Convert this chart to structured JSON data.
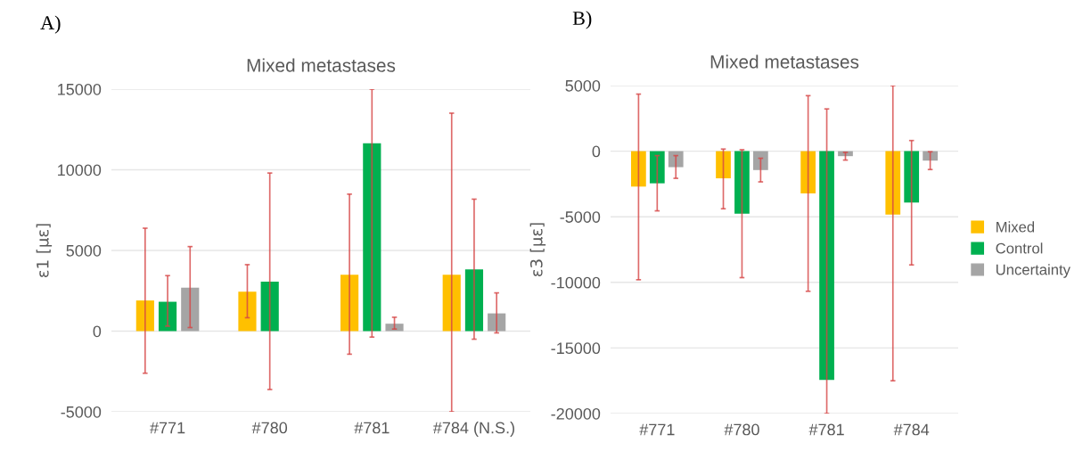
{
  "chart_data": [
    {
      "type": "bar",
      "title": "Mixed metastases",
      "ylabel": "ε1 [με]",
      "annotations": [
        "A)"
      ],
      "categories": [
        "#771",
        "#780",
        "#781",
        "#784 (N.S.)"
      ],
      "ylim": [
        -5000,
        15000
      ],
      "yticks": [
        -5000,
        0,
        5000,
        10000,
        15000
      ],
      "grid": "y",
      "legend": false,
      "series": [
        {
          "color": "#ffc000",
          "values": [
            1900,
            2450,
            3490,
            3490
          ],
          "errors": [
            [
              -2610,
              6380
            ],
            [
              830,
              4120
            ],
            [
              -1430,
              8490
            ],
            [
              -5000,
              13510
            ]
          ]
        },
        {
          "color": "#00b050",
          "values": [
            1820,
            3070,
            11640,
            3820
          ],
          "errors": [
            [
              310,
              3440
            ],
            [
              -3620,
              9800
            ],
            [
              -370,
              15000
            ],
            [
              -500,
              8180
            ]
          ]
        },
        {
          "color": "#a5a5a5",
          "values": [
            2700,
            null,
            460,
            1100
          ],
          "errors": [
            [
              220,
              5240
            ],
            null,
            [
              130,
              860
            ],
            [
              -110,
              2370
            ]
          ]
        }
      ]
    },
    {
      "type": "bar",
      "title": "Mixed metastases",
      "ylabel": "ε3 [με]",
      "annotations": [
        "B)"
      ],
      "categories": [
        "#771",
        "#780",
        "#781",
        "#784"
      ],
      "ylim": [
        -20000,
        5000
      ],
      "yticks": [
        -20000,
        -15000,
        -10000,
        -5000,
        0,
        5000
      ],
      "grid": "y",
      "legend": "right",
      "series": [
        {
          "name": "Mixed",
          "color": "#ffc000",
          "values": [
            -2700,
            -2070,
            -3220,
            -4840
          ],
          "errors": [
            [
              -9800,
              4350
            ],
            [
              -4390,
              160
            ],
            [
              -10680,
              4230
            ],
            [
              -17500,
              5000
            ]
          ]
        },
        {
          "name": "Control",
          "color": "#00b050",
          "values": [
            -2450,
            -4770,
            -17430,
            -3920
          ],
          "errors": [
            [
              -4550,
              -340
            ],
            [
              -9640,
              110
            ],
            [
              -20000,
              3220
            ],
            [
              -8670,
              810
            ]
          ]
        },
        {
          "name": "Uncertainty",
          "color": "#a5a5a5",
          "values": [
            -1220,
            -1440,
            -380,
            -720
          ],
          "errors": [
            [
              -2070,
              -340
            ],
            [
              -2340,
              -540
            ],
            [
              -680,
              -90
            ],
            [
              -1400,
              -45
            ]
          ]
        }
      ]
    }
  ]
}
